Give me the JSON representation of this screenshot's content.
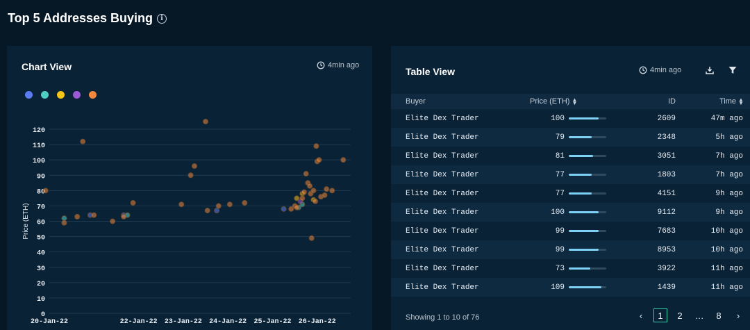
{
  "page": {
    "title": "Top 5 Addresses Buying"
  },
  "chart_card": {
    "title": "Chart View",
    "updated": "4min ago"
  },
  "table_card": {
    "title": "Table View",
    "updated": "4min ago"
  },
  "legend": [
    {
      "color": "#5b7cf0"
    },
    {
      "color": "#4ecdc4"
    },
    {
      "color": "#f5c518"
    },
    {
      "color": "#9b59d6"
    },
    {
      "color": "#f0883e"
    }
  ],
  "chart_data": {
    "type": "scatter",
    "ylabel": "Price (ETH)",
    "ylim": [
      0,
      120
    ],
    "yticks": [
      "0",
      "10",
      "20",
      "30",
      "40",
      "50",
      "60",
      "70",
      "80",
      "90",
      "100",
      "110",
      "120"
    ],
    "xlim": [
      "2022-01-20",
      "2022-01-26T18:00"
    ],
    "xticks": [
      "20-Jan-22",
      "22-Jan-22",
      "23-Jan-22",
      "24-Jan-22",
      "25-Jan-22",
      "26-Jan-22"
    ],
    "xtick_dates": [
      "2022-01-20",
      "2022-01-22",
      "2022-01-23",
      "2022-01-24",
      "2022-01-25",
      "2022-01-26"
    ],
    "grid": true,
    "series": [
      {
        "color": "#5b7cf0",
        "points": [
          {
            "x": "2022-01-20T22:00",
            "y": 64
          },
          {
            "x": "2022-01-21T16:00",
            "y": 64
          },
          {
            "x": "2022-01-23T18:00",
            "y": 67
          },
          {
            "x": "2022-01-25T06:00",
            "y": 68
          }
        ]
      },
      {
        "color": "#4ecdc4",
        "points": [
          {
            "x": "2022-01-20T08:00",
            "y": 62
          },
          {
            "x": "2022-01-21T18:00",
            "y": 64
          },
          {
            "x": "2022-01-25T14:00",
            "y": 69
          },
          {
            "x": "2022-01-25T16:00",
            "y": 71
          }
        ]
      },
      {
        "color": "#f5c518",
        "points": [
          {
            "x": "2022-01-25T13:00",
            "y": 75
          },
          {
            "x": "2022-01-25T16:00",
            "y": 78
          },
          {
            "x": "2022-01-25T22:00",
            "y": 74
          }
        ]
      },
      {
        "color": "#9b59d6",
        "points": [
          {
            "x": "2022-01-25T15:00",
            "y": 73
          }
        ]
      },
      {
        "color": "#f0883e",
        "points": [
          {
            "x": "2022-01-19T22:00",
            "y": 80
          },
          {
            "x": "2022-01-20T08:00",
            "y": 59
          },
          {
            "x": "2022-01-20T15:00",
            "y": 63
          },
          {
            "x": "2022-01-20T18:00",
            "y": 112
          },
          {
            "x": "2022-01-21T00:00",
            "y": 64
          },
          {
            "x": "2022-01-21T10:00",
            "y": 60
          },
          {
            "x": "2022-01-21T16:00",
            "y": 63
          },
          {
            "x": "2022-01-21T21:00",
            "y": 72
          },
          {
            "x": "2022-01-22T23:00",
            "y": 71
          },
          {
            "x": "2022-01-23T04:00",
            "y": 90
          },
          {
            "x": "2022-01-23T06:00",
            "y": 96
          },
          {
            "x": "2022-01-23T12:00",
            "y": 125
          },
          {
            "x": "2022-01-23T13:00",
            "y": 67
          },
          {
            "x": "2022-01-23T19:00",
            "y": 70
          },
          {
            "x": "2022-01-24T01:00",
            "y": 71
          },
          {
            "x": "2022-01-24T09:00",
            "y": 72
          },
          {
            "x": "2022-01-25T10:00",
            "y": 68
          },
          {
            "x": "2022-01-25T12:00",
            "y": 70
          },
          {
            "x": "2022-01-25T13:00",
            "y": 69
          },
          {
            "x": "2022-01-25T16:00",
            "y": 75
          },
          {
            "x": "2022-01-25T17:00",
            "y": 79
          },
          {
            "x": "2022-01-25T18:00",
            "y": 91
          },
          {
            "x": "2022-01-25T19:00",
            "y": 85
          },
          {
            "x": "2022-01-25T20:00",
            "y": 83
          },
          {
            "x": "2022-01-25T20:30",
            "y": 78
          },
          {
            "x": "2022-01-25T21:00",
            "y": 49
          },
          {
            "x": "2022-01-25T22:00",
            "y": 80
          },
          {
            "x": "2022-01-25T23:00",
            "y": 73
          },
          {
            "x": "2022-01-25T23:30",
            "y": 109
          },
          {
            "x": "2022-01-26T00:00",
            "y": 99
          },
          {
            "x": "2022-01-26T01:00",
            "y": 100
          },
          {
            "x": "2022-01-26T02:00",
            "y": 76
          },
          {
            "x": "2022-01-26T04:00",
            "y": 77
          },
          {
            "x": "2022-01-26T05:00",
            "y": 81
          },
          {
            "x": "2022-01-26T08:00",
            "y": 80
          },
          {
            "x": "2022-01-26T14:00",
            "y": 100
          }
        ]
      }
    ]
  },
  "table": {
    "columns": {
      "buyer": "Buyer",
      "price": "Price (ETH)",
      "id": "ID",
      "time": "Time"
    },
    "rows": [
      {
        "buyer": "Elite Dex Trader",
        "price": "100",
        "price_fraction": 0.8,
        "id": "2609",
        "time": "47m ago"
      },
      {
        "buyer": "Elite Dex Trader",
        "price": "79",
        "price_fraction": 0.62,
        "id": "2348",
        "time": "5h ago"
      },
      {
        "buyer": "Elite Dex Trader",
        "price": "81",
        "price_fraction": 0.64,
        "id": "3051",
        "time": "7h ago"
      },
      {
        "buyer": "Elite Dex Trader",
        "price": "77",
        "price_fraction": 0.61,
        "id": "1803",
        "time": "7h ago"
      },
      {
        "buyer": "Elite Dex Trader",
        "price": "77",
        "price_fraction": 0.61,
        "id": "4151",
        "time": "9h ago"
      },
      {
        "buyer": "Elite Dex Trader",
        "price": "100",
        "price_fraction": 0.8,
        "id": "9112",
        "time": "9h ago"
      },
      {
        "buyer": "Elite Dex Trader",
        "price": "99",
        "price_fraction": 0.79,
        "id": "7683",
        "time": "10h ago"
      },
      {
        "buyer": "Elite Dex Trader",
        "price": "99",
        "price_fraction": 0.79,
        "id": "8953",
        "time": "10h ago"
      },
      {
        "buyer": "Elite Dex Trader",
        "price": "73",
        "price_fraction": 0.58,
        "id": "3922",
        "time": "11h ago"
      },
      {
        "buyer": "Elite Dex Trader",
        "price": "109",
        "price_fraction": 0.87,
        "id": "1439",
        "time": "11h ago"
      }
    ],
    "footer": "Showing 1 to 10 of 76",
    "pagination": {
      "prev": "‹",
      "pages": [
        "1",
        "2",
        "…",
        "8"
      ],
      "active": "1",
      "next": "›"
    }
  }
}
